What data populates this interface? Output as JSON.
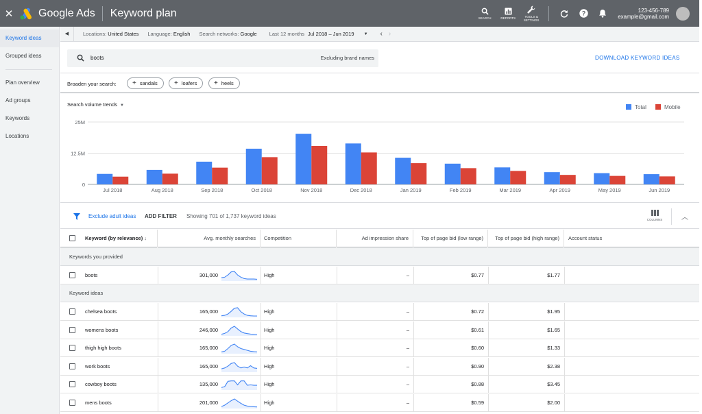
{
  "topbar": {
    "close_icon": "close-icon",
    "brand": "Google Ads",
    "title": "Keyword plan",
    "tools": [
      {
        "icon": "search-icon",
        "label": "SEARCH"
      },
      {
        "icon": "reports-icon",
        "label": "REPORTS"
      },
      {
        "icon": "wrench-icon",
        "label": "TOOLS & SETTINGS"
      }
    ],
    "account_id": "123-456-789",
    "email": "example@gmail.com"
  },
  "sidebar": {
    "items": [
      {
        "label": "Keyword ideas",
        "active": true
      },
      {
        "label": "Grouped ideas",
        "active": false
      },
      {
        "label": "Plan overview",
        "active": false
      },
      {
        "label": "Ad groups",
        "active": false
      },
      {
        "label": "Keywords",
        "active": false
      },
      {
        "label": "Locations",
        "active": false
      }
    ]
  },
  "filterbar": {
    "locations_label": "Locations:",
    "locations_value": "United States",
    "language_label": "Language:",
    "language_value": "English",
    "networks_label": "Search networks:",
    "networks_value": "Google",
    "range_label": "Last 12 months",
    "range_value": "Jul 2018 – Jun 2019"
  },
  "search": {
    "term": "boots",
    "excluding": "Excluding brand names",
    "download_label": "DOWNLOAD KEYWORD IDEAS"
  },
  "broaden": {
    "label": "Broaden your search:",
    "chips": [
      "sandals",
      "loafers",
      "heels"
    ]
  },
  "trends": {
    "label": "Search volume trends"
  },
  "chart_data": {
    "type": "bar",
    "categories": [
      "Jul 2018",
      "Aug 2018",
      "Sep 2018",
      "Oct 2018",
      "Nov 2018",
      "Dec 2018",
      "Jan 2019",
      "Feb 2019",
      "Mar 2019",
      "Apr 2019",
      "May 2019",
      "Jun 2019"
    ],
    "series": [
      {
        "name": "Total",
        "color": "#4285f4",
        "values": [
          4.2,
          5.8,
          9.1,
          14.3,
          20.3,
          16.4,
          10.7,
          8.3,
          6.8,
          4.9,
          4.5,
          4.1
        ]
      },
      {
        "name": "Mobile",
        "color": "#db4437",
        "values": [
          3.1,
          4.3,
          6.7,
          10.9,
          15.4,
          12.8,
          8.5,
          6.5,
          5.4,
          3.8,
          3.4,
          3.2
        ]
      }
    ],
    "y_ticks": [
      "0",
      "12.5M",
      "25M"
    ],
    "ylim": [
      0,
      25
    ],
    "unit": "millions",
    "legend_position": "top-right",
    "grid": true
  },
  "toolbar": {
    "exclude_label": "Exclude adult ideas",
    "add_filter_label": "ADD FILTER",
    "showing": "Showing 701 of 1,737 keyword ideas",
    "columns_label": "COLUMNS"
  },
  "table": {
    "headers": [
      "Keyword (by relevance)",
      "Avg. monthly searches",
      "Competition",
      "Ad impression share",
      "Top of page bid (low range)",
      "Top of page bid (high range)",
      "Account status"
    ],
    "sort_icon": "arrow-down-icon",
    "group_provided": "Keywords you provided",
    "group_ideas": "Keyword ideas",
    "provided_rows": [
      {
        "keyword": "boots",
        "searches": "301,000",
        "competition": "High",
        "share": "–",
        "low": "$0.77",
        "high": "$1.77",
        "trend": [
          0.3,
          0.35,
          0.6,
          0.95,
          1.0,
          0.6,
          0.35,
          0.2,
          0.15,
          0.15,
          0.15,
          0.12
        ]
      }
    ],
    "idea_rows": [
      {
        "keyword": "chelsea boots",
        "searches": "165,000",
        "competition": "High",
        "share": "–",
        "low": "$0.72",
        "high": "$1.95",
        "trend": [
          0.1,
          0.15,
          0.3,
          0.6,
          0.95,
          1.0,
          0.55,
          0.3,
          0.15,
          0.1,
          0.08,
          0.08
        ]
      },
      {
        "keyword": "womens boots",
        "searches": "246,000",
        "competition": "High",
        "share": "–",
        "low": "$0.61",
        "high": "$1.65",
        "trend": [
          0.1,
          0.2,
          0.4,
          0.8,
          1.0,
          0.7,
          0.4,
          0.25,
          0.18,
          0.12,
          0.1,
          0.08
        ]
      },
      {
        "keyword": "thigh high boots",
        "searches": "165,000",
        "competition": "High",
        "share": "–",
        "low": "$0.60",
        "high": "$1.33",
        "trend": [
          0.12,
          0.2,
          0.5,
          0.85,
          1.0,
          0.7,
          0.5,
          0.4,
          0.3,
          0.2,
          0.15,
          0.12
        ]
      },
      {
        "keyword": "work boots",
        "searches": "165,000",
        "competition": "High",
        "share": "–",
        "low": "$0.90",
        "high": "$2.38",
        "trend": [
          0.3,
          0.4,
          0.6,
          0.9,
          1.0,
          0.6,
          0.4,
          0.5,
          0.4,
          0.65,
          0.4,
          0.35
        ]
      },
      {
        "keyword": "cowboy boots",
        "searches": "135,000",
        "competition": "High",
        "share": "–",
        "low": "$0.88",
        "high": "$3.45",
        "trend": [
          0.2,
          0.3,
          0.9,
          0.95,
          0.95,
          0.5,
          0.95,
          0.95,
          0.45,
          0.5,
          0.45,
          0.45
        ]
      },
      {
        "keyword": "mens boots",
        "searches": "201,000",
        "competition": "High",
        "share": "–",
        "low": "$0.59",
        "high": "$2.00",
        "trend": [
          0.15,
          0.3,
          0.55,
          0.8,
          1.0,
          0.75,
          0.5,
          0.3,
          0.2,
          0.15,
          0.12,
          0.1
        ]
      }
    ]
  },
  "colors": {
    "accent": "#1a73e8",
    "topbar": "#5f6368",
    "total": "#4285f4",
    "mobile": "#db4437"
  }
}
